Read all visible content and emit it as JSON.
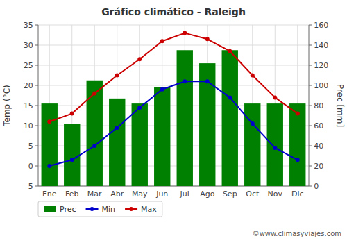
{
  "chart_data": {
    "type": "bar",
    "title": "Gráfico climático - Raleigh",
    "categories": [
      "Ene",
      "Feb",
      "Mar",
      "Abr",
      "May",
      "Jun",
      "Jul",
      "Ago",
      "Sep",
      "Oct",
      "Nov",
      "Dic"
    ],
    "series": [
      {
        "name": "Prec",
        "type": "bar",
        "axis": "y2",
        "color": "#008000",
        "values": [
          82,
          62,
          105,
          87,
          82,
          98,
          135,
          122,
          135,
          82,
          82,
          82
        ]
      },
      {
        "name": "Min",
        "type": "line",
        "marker": "circle",
        "color": "#0000cc",
        "values": [
          0.0,
          1.5,
          5.0,
          9.5,
          14.5,
          19.0,
          21.0,
          21.0,
          17.0,
          10.5,
          4.5,
          1.5
        ]
      },
      {
        "name": "Max",
        "type": "line",
        "marker": "circle",
        "color": "#cc0000",
        "values": [
          11.0,
          13.0,
          18.0,
          22.5,
          26.5,
          31.0,
          33.0,
          31.5,
          28.5,
          22.5,
          17.0,
          13.0
        ]
      }
    ],
    "ylabel": "Temp (°C)",
    "y2label": "Prec [mm]",
    "ylim": [
      -5,
      35
    ],
    "yticks": [
      -5,
      0,
      5,
      10,
      15,
      20,
      25,
      30,
      35
    ],
    "y2lim": [
      0,
      160
    ],
    "y2ticks": [
      0,
      20,
      40,
      60,
      80,
      100,
      120,
      140,
      160
    ],
    "grid": true,
    "legend": "bottom",
    "annotations": [
      "©www.climasyviajes.com"
    ]
  }
}
